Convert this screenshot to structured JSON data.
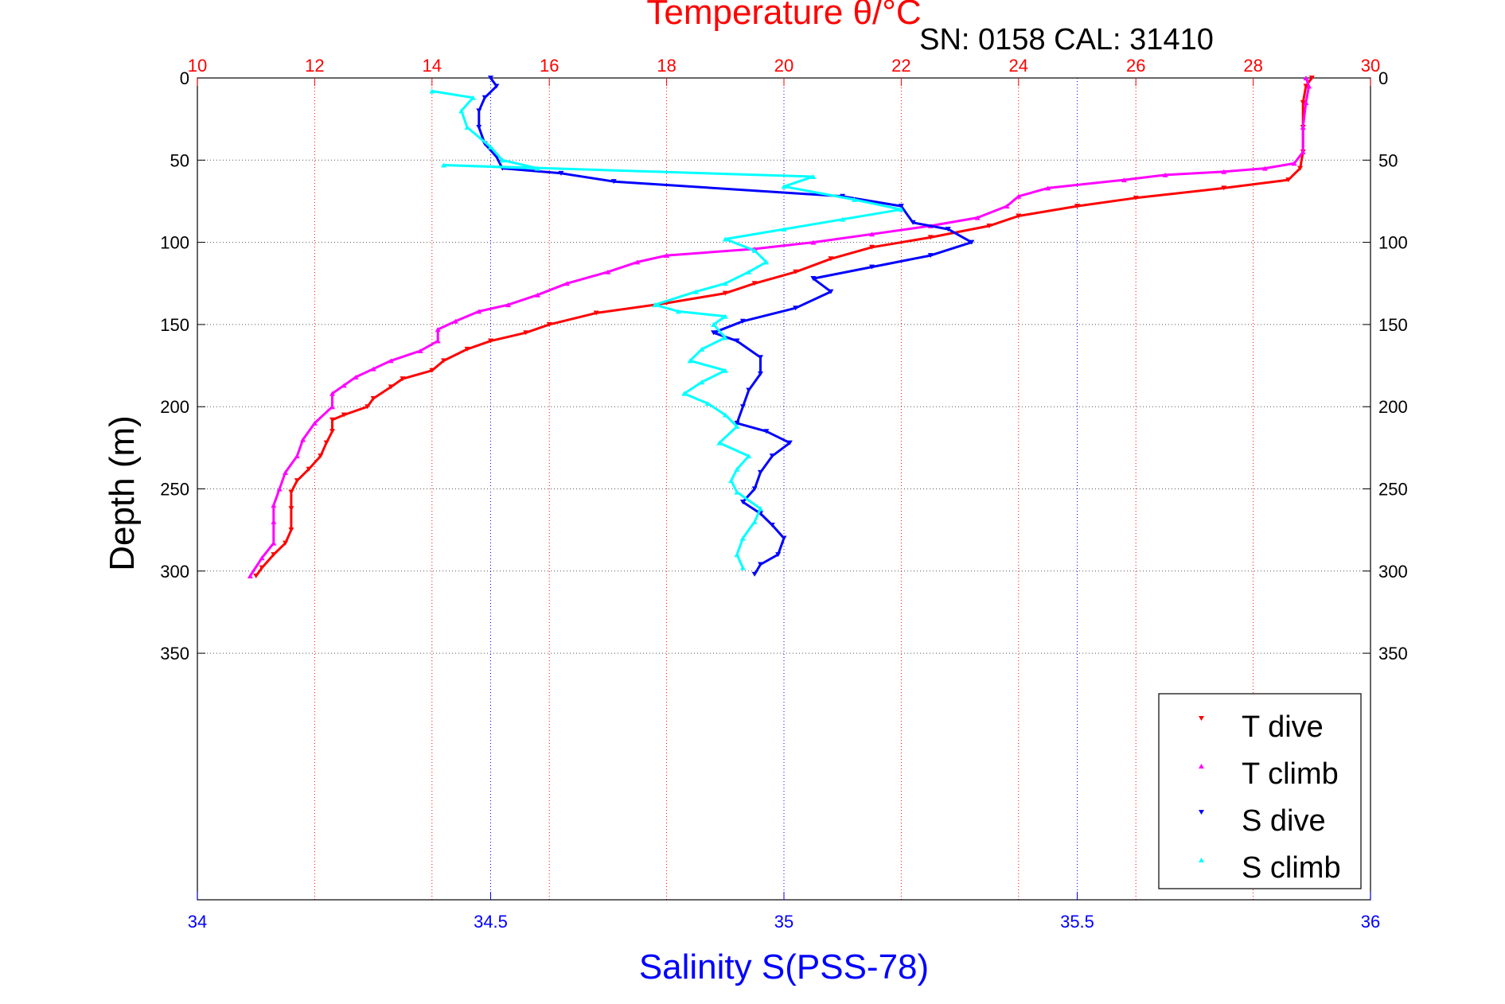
{
  "chart_data": {
    "type": "scatter",
    "title": "SN: 0158  CAL: 31410",
    "top_axis": {
      "label": "Temperature θ/°C",
      "range": [
        10,
        30
      ],
      "ticks": [
        "10",
        "12",
        "14",
        "16",
        "18",
        "20",
        "22",
        "24",
        "26",
        "28",
        "30"
      ],
      "color": "#ff0000"
    },
    "bottom_axis": {
      "label": "Salinity S(PSS-78)",
      "range": [
        34,
        36
      ],
      "ticks": [
        "34",
        "34.5",
        "35",
        "35.5",
        "36"
      ],
      "color": "#0000ff"
    },
    "y_axis": {
      "label": "Depth (m)",
      "range": [
        0,
        500
      ],
      "reversed": true,
      "ticks": [
        "0",
        "50",
        "100",
        "150",
        "200",
        "250",
        "300",
        "350"
      ]
    },
    "grid": true,
    "legend": {
      "placement": "bottom-right"
    },
    "series": [
      {
        "name": "T dive",
        "color": "#ff0000",
        "marker": "triangle-down",
        "axis": "temperature",
        "points": [
          [
            29.0,
            0
          ],
          [
            28.9,
            5
          ],
          [
            28.85,
            15
          ],
          [
            28.85,
            30
          ],
          [
            28.85,
            45
          ],
          [
            28.8,
            55
          ],
          [
            28.6,
            62
          ],
          [
            27.5,
            67
          ],
          [
            26.0,
            73
          ],
          [
            25.0,
            78
          ],
          [
            24.0,
            84
          ],
          [
            23.5,
            90
          ],
          [
            22.5,
            97
          ],
          [
            21.5,
            103
          ],
          [
            20.8,
            110
          ],
          [
            20.2,
            118
          ],
          [
            19.5,
            125
          ],
          [
            19.0,
            131
          ],
          [
            18.0,
            137
          ],
          [
            16.8,
            143
          ],
          [
            16.0,
            150
          ],
          [
            15.6,
            155
          ],
          [
            15.0,
            160
          ],
          [
            14.6,
            165
          ],
          [
            14.2,
            172
          ],
          [
            14.0,
            178
          ],
          [
            13.5,
            183
          ],
          [
            13.3,
            188
          ],
          [
            13.0,
            195
          ],
          [
            12.9,
            200
          ],
          [
            12.5,
            205
          ],
          [
            12.3,
            208
          ],
          [
            12.3,
            215
          ],
          [
            12.2,
            222
          ],
          [
            12.1,
            230
          ],
          [
            11.9,
            238
          ],
          [
            11.7,
            245
          ],
          [
            11.6,
            252
          ],
          [
            11.6,
            262
          ],
          [
            11.6,
            275
          ],
          [
            11.5,
            283
          ],
          [
            11.3,
            290
          ],
          [
            11.1,
            298
          ],
          [
            11.0,
            303
          ]
        ]
      },
      {
        "name": "T climb",
        "color": "#ff00ff",
        "marker": "triangle-up",
        "axis": "temperature",
        "points": [
          [
            28.9,
            0
          ],
          [
            28.95,
            5
          ],
          [
            28.9,
            15
          ],
          [
            28.85,
            30
          ],
          [
            28.85,
            45
          ],
          [
            28.7,
            52
          ],
          [
            28.2,
            55
          ],
          [
            27.5,
            57
          ],
          [
            26.5,
            59
          ],
          [
            25.8,
            62
          ],
          [
            24.5,
            67
          ],
          [
            24.0,
            72
          ],
          [
            23.8,
            78
          ],
          [
            23.3,
            85
          ],
          [
            22.5,
            90
          ],
          [
            21.5,
            95
          ],
          [
            20.5,
            100
          ],
          [
            19.5,
            104
          ],
          [
            18.0,
            108
          ],
          [
            17.5,
            112
          ],
          [
            17.0,
            118
          ],
          [
            16.3,
            125
          ],
          [
            15.8,
            132
          ],
          [
            15.3,
            138
          ],
          [
            14.8,
            142
          ],
          [
            14.4,
            148
          ],
          [
            14.1,
            153
          ],
          [
            14.1,
            160
          ],
          [
            13.8,
            166
          ],
          [
            13.3,
            172
          ],
          [
            13.0,
            177
          ],
          [
            12.7,
            182
          ],
          [
            12.5,
            187
          ],
          [
            12.3,
            192
          ],
          [
            12.3,
            200
          ],
          [
            12.0,
            210
          ],
          [
            11.8,
            220
          ],
          [
            11.7,
            230
          ],
          [
            11.5,
            240
          ],
          [
            11.4,
            250
          ],
          [
            11.3,
            260
          ],
          [
            11.3,
            270
          ],
          [
            11.3,
            283
          ],
          [
            11.1,
            292
          ],
          [
            10.9,
            303
          ]
        ]
      },
      {
        "name": "S dive",
        "color": "#0000ff",
        "marker": "triangle-down",
        "axis": "salinity",
        "points": [
          [
            34.5,
            0
          ],
          [
            34.51,
            5
          ],
          [
            34.49,
            12
          ],
          [
            34.48,
            20
          ],
          [
            34.48,
            30
          ],
          [
            34.49,
            40
          ],
          [
            34.51,
            48
          ],
          [
            34.52,
            55
          ],
          [
            34.62,
            58
          ],
          [
            34.71,
            63
          ],
          [
            35.1,
            72
          ],
          [
            35.2,
            78
          ],
          [
            35.22,
            88
          ],
          [
            35.28,
            92
          ],
          [
            35.32,
            100
          ],
          [
            35.25,
            108
          ],
          [
            35.15,
            115
          ],
          [
            35.05,
            122
          ],
          [
            35.08,
            130
          ],
          [
            35.02,
            140
          ],
          [
            34.93,
            148
          ],
          [
            34.88,
            155
          ],
          [
            34.92,
            160
          ],
          [
            34.96,
            170
          ],
          [
            34.96,
            180
          ],
          [
            34.94,
            190
          ],
          [
            34.93,
            200
          ],
          [
            34.92,
            210
          ],
          [
            34.97,
            215
          ],
          [
            35.01,
            222
          ],
          [
            34.98,
            230
          ],
          [
            34.96,
            240
          ],
          [
            34.95,
            250
          ],
          [
            34.93,
            258
          ],
          [
            34.96,
            265
          ],
          [
            34.98,
            272
          ],
          [
            35.0,
            280
          ],
          [
            34.99,
            290
          ],
          [
            34.96,
            296
          ],
          [
            34.95,
            302
          ]
        ]
      },
      {
        "name": "S climb",
        "color": "#00ffff",
        "marker": "triangle-up",
        "axis": "salinity",
        "points": [
          [
            34.4,
            8
          ],
          [
            34.47,
            12
          ],
          [
            34.45,
            20
          ],
          [
            34.46,
            30
          ],
          [
            34.5,
            42
          ],
          [
            34.52,
            50
          ],
          [
            34.58,
            55
          ],
          [
            34.42,
            53
          ],
          [
            35.05,
            60
          ],
          [
            35.0,
            66
          ],
          [
            35.12,
            74
          ],
          [
            35.2,
            80
          ],
          [
            35.1,
            86
          ],
          [
            35.0,
            92
          ],
          [
            34.9,
            98
          ],
          [
            34.95,
            105
          ],
          [
            34.97,
            112
          ],
          [
            34.94,
            118
          ],
          [
            34.9,
            125
          ],
          [
            34.85,
            130
          ],
          [
            34.78,
            138
          ],
          [
            34.82,
            142
          ],
          [
            34.9,
            145
          ],
          [
            34.88,
            150
          ],
          [
            34.9,
            158
          ],
          [
            34.86,
            165
          ],
          [
            34.84,
            172
          ],
          [
            34.9,
            178
          ],
          [
            34.86,
            185
          ],
          [
            34.83,
            192
          ],
          [
            34.87,
            198
          ],
          [
            34.9,
            205
          ],
          [
            34.92,
            212
          ],
          [
            34.89,
            222
          ],
          [
            34.94,
            230
          ],
          [
            34.92,
            238
          ],
          [
            34.91,
            245
          ],
          [
            34.92,
            252
          ],
          [
            34.96,
            262
          ],
          [
            34.95,
            270
          ],
          [
            34.93,
            280
          ],
          [
            34.92,
            290
          ],
          [
            34.93,
            298
          ]
        ]
      }
    ]
  },
  "legend": {
    "labels": [
      "T dive",
      "T climb",
      "S dive",
      "S climb"
    ]
  }
}
